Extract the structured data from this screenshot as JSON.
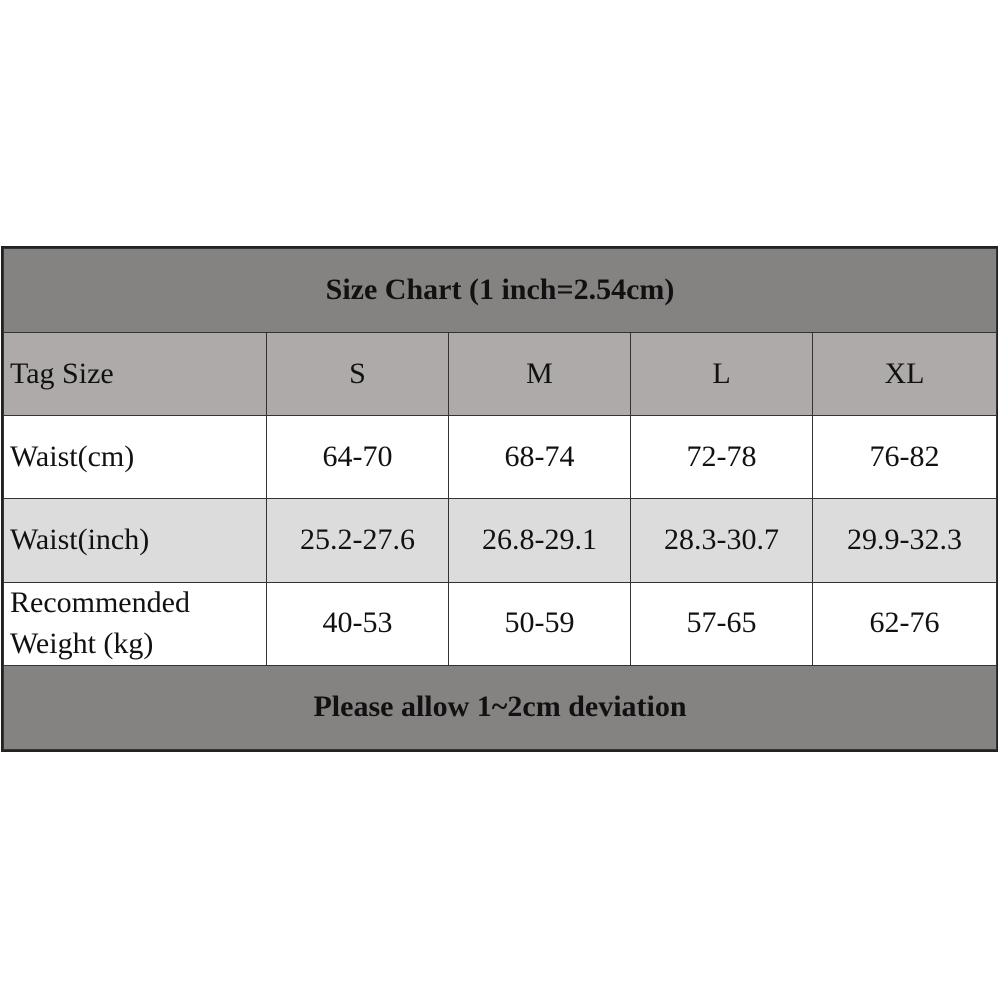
{
  "table": {
    "title": "Size Chart (1 inch=2.54cm)",
    "header": [
      "Tag Size",
      "S",
      "M",
      "L",
      "XL"
    ],
    "rows": [
      [
        "Waist(cm)",
        "64-70",
        "68-74",
        "72-78",
        "76-82"
      ],
      [
        "Waist(inch)",
        "25.2-27.6",
        "26.8-29.1",
        "28.3-30.7",
        "29.9-32.3"
      ],
      [
        "Recommended Weight (kg)",
        "40-53",
        "50-59",
        "57-65",
        "62-76"
      ]
    ],
    "footer": "Please allow 1~2cm deviation"
  }
}
